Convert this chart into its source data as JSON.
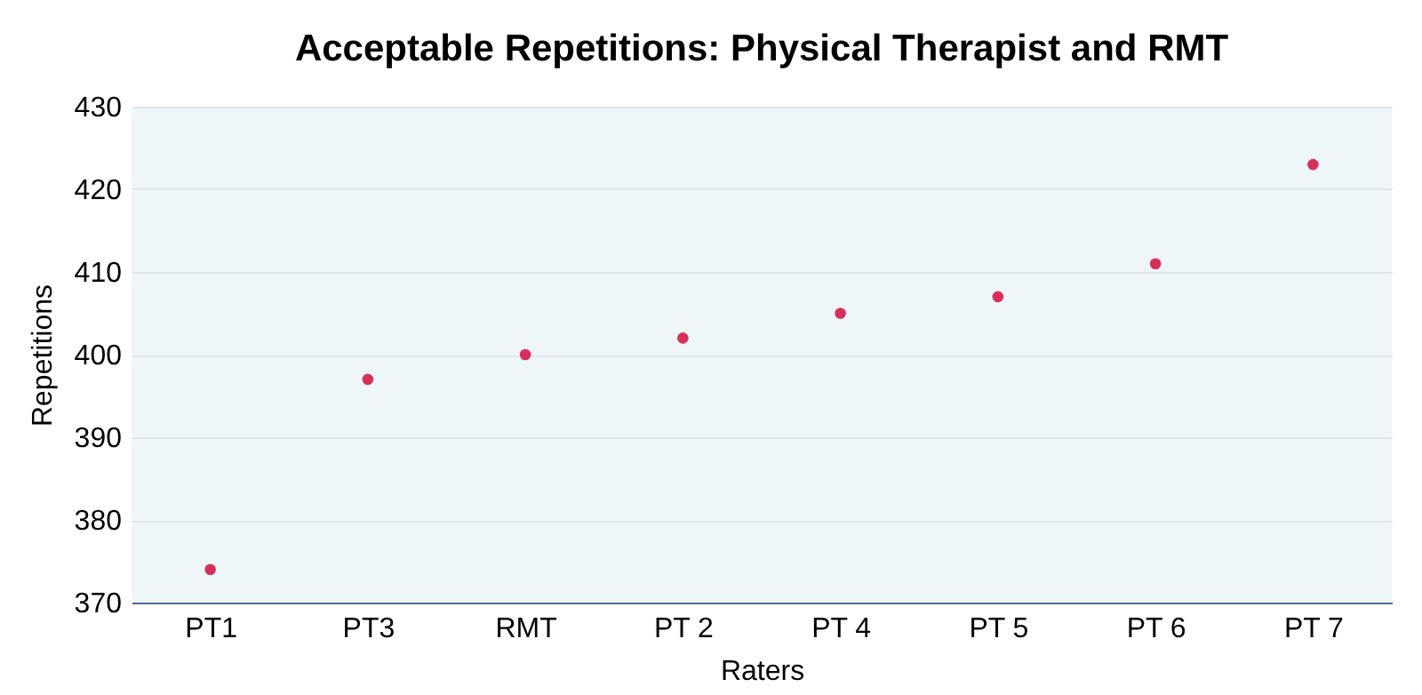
{
  "chart_data": {
    "type": "scatter",
    "title": "Acceptable Repetitions:  Physical Therapist and RMT",
    "xlabel": "Raters",
    "ylabel": "Repetitions",
    "categories": [
      "PT1",
      "PT3",
      "RMT",
      "PT 2",
      "PT 4",
      "PT 5",
      "PT 6",
      "PT 7"
    ],
    "series": [
      {
        "color": "#d6305a",
        "values": [
          374,
          397,
          400,
          402,
          405,
          407,
          411,
          423
        ]
      }
    ],
    "ylim": [
      370,
      430
    ],
    "yticks": [
      370,
      380,
      390,
      400,
      410,
      420,
      430
    ],
    "grid": "y",
    "marker": "circle",
    "legend": false
  }
}
